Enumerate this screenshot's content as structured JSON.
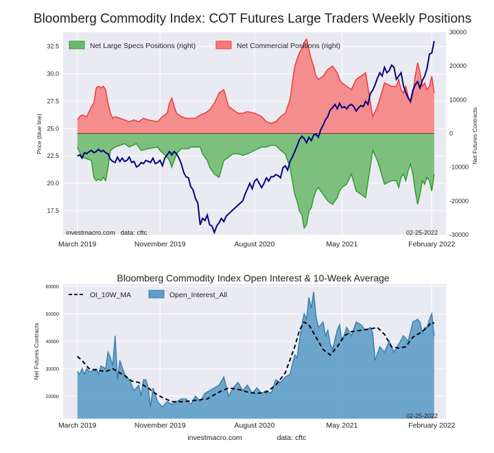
{
  "colors": {
    "plot_bg": "#eaeaf2",
    "grid": "#ffffff",
    "specs_fill": "#6ab86a",
    "specs_line": "#2e9b2e",
    "comm_fill": "#f47c7c",
    "comm_line": "#ee3a3a",
    "price_line": "#000080",
    "oi_fill": "#5f9ec8",
    "oi_line": "#3a7fb0",
    "ma_line": "#000000"
  },
  "footer": {
    "site": "investmacro.com",
    "source": "data: cftc"
  },
  "chart_data": [
    {
      "type": "area",
      "title": "Bloomberg Commodity Index: COT Futures Large Traders Weekly Positions",
      "ylabel": "Price (blue line)",
      "y2label": "Net Futures Contracts",
      "x_tick_labels": [
        "March 2019",
        "November 2019",
        "August 2020",
        "May 2021",
        "February 2022"
      ],
      "x_tick_positions": [
        0,
        35,
        75,
        112,
        150
      ],
      "x_range": [
        -6,
        156
      ],
      "ylim": [
        15.3,
        33.8
      ],
      "y_ticks": [
        17.5,
        20.0,
        22.5,
        25.0,
        27.5,
        30.0,
        32.5
      ],
      "y2lim": [
        -30000,
        30000
      ],
      "y2_ticks": [
        -30000,
        -20000,
        -10000,
        0,
        10000,
        20000,
        30000
      ],
      "legend_position": "top-left",
      "annotations": [
        "investmacro.com   data: cftc",
        "02-25-2022"
      ],
      "series": [
        {
          "name": "Net Large Specs Positions (right)",
          "axis": "right",
          "kp_x": [
            0,
            2,
            6,
            7,
            8,
            9,
            10,
            11,
            12,
            13,
            14,
            16,
            20,
            22,
            25,
            27,
            30,
            34,
            35,
            38,
            39,
            40,
            41,
            42,
            44,
            47,
            48,
            50,
            52,
            53,
            54,
            55,
            56,
            58,
            60,
            62,
            64,
            66,
            68,
            70,
            72,
            75,
            78,
            80,
            82,
            84,
            86,
            88,
            90,
            91,
            92,
            93,
            94,
            95,
            96,
            97,
            98,
            99,
            100,
            101,
            102,
            104,
            106,
            108,
            110,
            111,
            112,
            114,
            116,
            118,
            120,
            122,
            125,
            127,
            130,
            133,
            135,
            136,
            137,
            138,
            139,
            140,
            141,
            142,
            143,
            144,
            145,
            146,
            147,
            148,
            149,
            150,
            151
          ],
          "kp_y": [
            -4000,
            -7000,
            -8000,
            -13000,
            -14000,
            -13500,
            -14000,
            -13000,
            -14000,
            -10000,
            -5000,
            -4000,
            -3000,
            -4000,
            -3000,
            -5000,
            -4500,
            -4000,
            -5000,
            -7000,
            -8000,
            -10000,
            -8000,
            -6000,
            -4500,
            -4500,
            -4000,
            -4000,
            -4000,
            -6000,
            -7000,
            -8000,
            -10000,
            -12000,
            -13000,
            -8000,
            -7000,
            -6000,
            -6000,
            -6500,
            -6000,
            -5000,
            -4000,
            -4000,
            -3500,
            -3500,
            -5000,
            -6000,
            -10000,
            -14000,
            -18000,
            -20000,
            -23000,
            -24000,
            -28000,
            -27000,
            -23000,
            -22000,
            -19000,
            -17000,
            -16000,
            -18000,
            -20000,
            -21000,
            -19000,
            -17000,
            -16000,
            -15000,
            -12000,
            -17000,
            -18000,
            -19000,
            -5000,
            -8000,
            -15000,
            -14000,
            -14000,
            -16000,
            -13000,
            -12000,
            -14000,
            -11000,
            -9000,
            -12000,
            -17000,
            -21000,
            -18000,
            -14000,
            -15000,
            -13000,
            -14000,
            -17000,
            -12000
          ]
        },
        {
          "name": "Net Commercial Positions (right)",
          "axis": "right",
          "kp_x": [
            0,
            1,
            2,
            4,
            6,
            7,
            8,
            9,
            10,
            11,
            12,
            13,
            14,
            15,
            16,
            18,
            20,
            22,
            24,
            26,
            28,
            30,
            34,
            36,
            38,
            39,
            40,
            41,
            42,
            44,
            46,
            50,
            52,
            54,
            56,
            58,
            60,
            62,
            64,
            66,
            68,
            70,
            72,
            75,
            78,
            80,
            82,
            84,
            86,
            88,
            90,
            91,
            92,
            93,
            94,
            95,
            96,
            97,
            98,
            99,
            100,
            101,
            102,
            104,
            106,
            108,
            110,
            111,
            112,
            114,
            116,
            118,
            120,
            122,
            125,
            127,
            130,
            133,
            135,
            136,
            137,
            138,
            139,
            140,
            141,
            142,
            143,
            144,
            145,
            146,
            147,
            148,
            149,
            150,
            151
          ],
          "kp_y": [
            4000,
            5000,
            5500,
            5000,
            8000,
            9000,
            13500,
            14000,
            13500,
            14000,
            13000,
            9000,
            6000,
            4500,
            5000,
            4500,
            4000,
            3500,
            4000,
            3500,
            4500,
            4000,
            3500,
            5000,
            6000,
            9000,
            10500,
            8000,
            6000,
            5000,
            4500,
            4500,
            5500,
            6000,
            7000,
            9000,
            12000,
            13000,
            8000,
            7000,
            6000,
            6000,
            6500,
            6000,
            5000,
            3500,
            3000,
            3500,
            5000,
            6000,
            10000,
            15000,
            20000,
            22000,
            24000,
            25000,
            27000,
            28000,
            25000,
            22000,
            20000,
            17000,
            16000,
            17000,
            19000,
            20000,
            18000,
            16000,
            15000,
            14000,
            13000,
            16000,
            17000,
            18000,
            5000,
            8000,
            15000,
            14000,
            14000,
            16000,
            13000,
            12000,
            14000,
            11000,
            9000,
            12000,
            17000,
            21000,
            18000,
            14000,
            15000,
            13000,
            14000,
            17000,
            12000
          ]
        },
        {
          "name": "Price",
          "axis": "left",
          "kp_x": [
            0,
            1,
            2,
            3,
            4,
            5,
            6,
            7,
            8,
            9,
            10,
            11,
            12,
            13,
            14,
            15,
            16,
            17,
            18,
            19,
            20,
            21,
            22,
            23,
            24,
            25,
            26,
            27,
            28,
            29,
            30,
            31,
            32,
            33,
            34,
            35,
            36,
            37,
            38,
            39,
            40,
            41,
            42,
            43,
            44,
            45,
            46,
            47,
            48,
            49,
            50,
            51,
            52,
            53,
            54,
            55,
            56,
            57,
            58,
            59,
            60,
            61,
            62,
            63,
            64,
            65,
            66,
            67,
            68,
            69,
            70,
            71,
            72,
            73,
            74,
            75,
            76,
            77,
            78,
            79,
            80,
            81,
            82,
            83,
            84,
            85,
            86,
            87,
            88,
            89,
            90,
            91,
            92,
            93,
            94,
            95,
            96,
            97,
            98,
            99,
            100,
            101,
            102,
            103,
            104,
            105,
            106,
            107,
            108,
            109,
            110,
            111,
            112,
            113,
            114,
            115,
            116,
            117,
            118,
            119,
            120,
            121,
            122,
            123,
            124,
            125,
            126,
            127,
            128,
            129,
            130,
            131,
            132,
            133,
            134,
            135,
            136,
            137,
            138,
            139,
            140,
            141,
            142,
            143,
            144,
            145,
            146,
            147,
            148,
            149,
            150,
            151
          ],
          "kp_y": [
            22.5,
            22.6,
            22.3,
            22.8,
            22.7,
            22.9,
            23.0,
            22.8,
            22.9,
            23.1,
            22.9,
            23.0,
            22.8,
            22.7,
            22.2,
            22.0,
            21.9,
            22.4,
            22.0,
            22.3,
            22.0,
            22.1,
            22.4,
            21.9,
            22.0,
            21.5,
            21.6,
            21.9,
            21.8,
            22.1,
            22.0,
            21.9,
            22.3,
            21.8,
            21.9,
            22.1,
            21.6,
            22.3,
            22.6,
            22.9,
            22.6,
            22.9,
            22.7,
            22.3,
            21.8,
            21.0,
            20.6,
            20.5,
            19.7,
            19.4,
            18.6,
            18.2,
            16.2,
            16.8,
            16.6,
            17.1,
            16.2,
            16.1,
            15.5,
            16.1,
            16.4,
            16.8,
            16.5,
            17.0,
            17.2,
            17.4,
            17.6,
            17.8,
            18.0,
            18.2,
            18.4,
            19.0,
            19.5,
            20.0,
            19.5,
            20.2,
            20.4,
            20.0,
            19.6,
            20.0,
            20.5,
            20.2,
            20.6,
            20.6,
            20.8,
            20.7,
            20.5,
            21.4,
            21.6,
            21.2,
            22.0,
            22.4,
            22.9,
            23.4,
            24.0,
            24.3,
            24.1,
            23.7,
            24.2,
            23.9,
            24.4,
            24.5,
            24.2,
            24.9,
            25.3,
            25.8,
            26.1,
            26.7,
            26.9,
            27.2,
            26.8,
            27.3,
            26.9,
            27.0,
            26.8,
            27.1,
            27.2,
            27.0,
            26.6,
            26.9,
            27.1,
            27.0,
            27.5,
            27.2,
            28.2,
            28.5,
            29.0,
            29.6,
            30.1,
            29.8,
            30.6,
            30.1,
            30.3,
            30.8,
            30.6,
            29.5,
            29.8,
            30.1,
            28.9,
            28.3,
            27.8,
            27.5,
            28.5,
            29.0,
            29.3,
            28.7,
            29.4,
            29.8,
            30.5,
            31.8,
            31.9,
            33.0
          ]
        }
      ]
    },
    {
      "type": "area",
      "title": "Bloomberg Commodity Index Open Interest & 10-Week Average",
      "ylabel": "Net Futures Contracts",
      "x_tick_labels": [
        "March 2019",
        "November 2019",
        "August 2020",
        "May 2021",
        "February 2022"
      ],
      "x_tick_positions": [
        0,
        35,
        75,
        112,
        150
      ],
      "x_range": [
        -6,
        156
      ],
      "ylim": [
        11800,
        60800
      ],
      "y_ticks": [
        20000,
        30000,
        40000,
        50000,
        60000
      ],
      "legend_position": "top-left",
      "annotations": [
        "02-25-2022"
      ],
      "series": [
        {
          "name": "Open_Interest_All",
          "kp_x": [
            0,
            1,
            2,
            3,
            4,
            5,
            6,
            8,
            9,
            10,
            12,
            13,
            14,
            15,
            16,
            17,
            18,
            20,
            22,
            24,
            26,
            27,
            28,
            29,
            30,
            31,
            32,
            34,
            36,
            38,
            40,
            42,
            44,
            46,
            48,
            50,
            52,
            54,
            56,
            58,
            60,
            62,
            64,
            66,
            68,
            70,
            72,
            74,
            76,
            78,
            80,
            82,
            84,
            86,
            88,
            90,
            92,
            93,
            94,
            95,
            96,
            97,
            98,
            99,
            100,
            101,
            102,
            103,
            104,
            105,
            106,
            107,
            108,
            110,
            111,
            112,
            114,
            116,
            118,
            120,
            122,
            124,
            125,
            126,
            128,
            130,
            132,
            134,
            136,
            138,
            140,
            142,
            144,
            145,
            146,
            147,
            148,
            149,
            150,
            151
          ],
          "kp_y": [
            29000,
            28000,
            30000,
            28000,
            30000,
            29000,
            29000,
            30000,
            28000,
            31000,
            30000,
            36000,
            34000,
            31000,
            42000,
            26000,
            33000,
            28000,
            26000,
            22000,
            24000,
            20000,
            26000,
            26000,
            23000,
            16000,
            23000,
            18000,
            16000,
            18000,
            17000,
            18000,
            19000,
            19000,
            17000,
            20000,
            18000,
            21000,
            22000,
            23000,
            24000,
            27000,
            20000,
            23000,
            25000,
            22000,
            24000,
            21000,
            23000,
            21000,
            22000,
            21000,
            26000,
            25000,
            27000,
            28000,
            35000,
            34000,
            40000,
            46000,
            50000,
            48000,
            56000,
            52000,
            58000,
            49000,
            45000,
            46000,
            47000,
            42000,
            44000,
            39000,
            37000,
            44000,
            46000,
            40000,
            45000,
            42000,
            47000,
            46000,
            44000,
            45000,
            43000,
            33000,
            38000,
            36000,
            40000,
            36000,
            39000,
            42000,
            40000,
            47000,
            48000,
            47000,
            43000,
            45000,
            45000,
            48000,
            50000,
            42000
          ]
        },
        {
          "name": "OI_10W_MA",
          "kp_x": [
            0,
            2,
            5,
            8,
            12,
            15,
            18,
            20,
            23,
            26,
            30,
            33,
            36,
            40,
            45,
            50,
            55,
            60,
            64,
            68,
            72,
            76,
            80,
            84,
            88,
            92,
            94,
            96,
            98,
            100,
            102,
            104,
            107,
            110,
            113,
            116,
            120,
            124,
            127,
            130,
            133,
            136,
            139,
            142,
            145,
            148,
            150,
            151
          ],
          "kp_y": [
            34500,
            33000,
            30000,
            29500,
            29000,
            30000,
            28500,
            27500,
            25500,
            25000,
            23000,
            21000,
            19500,
            18000,
            18000,
            18500,
            19000,
            21500,
            23000,
            22500,
            21500,
            21000,
            21500,
            24000,
            28500,
            38000,
            44000,
            47000,
            46000,
            43000,
            40000,
            37000,
            35000,
            38000,
            42000,
            43500,
            44000,
            44500,
            45000,
            42500,
            38000,
            37500,
            38000,
            41500,
            43000,
            45000,
            47000,
            46500
          ]
        }
      ]
    }
  ]
}
